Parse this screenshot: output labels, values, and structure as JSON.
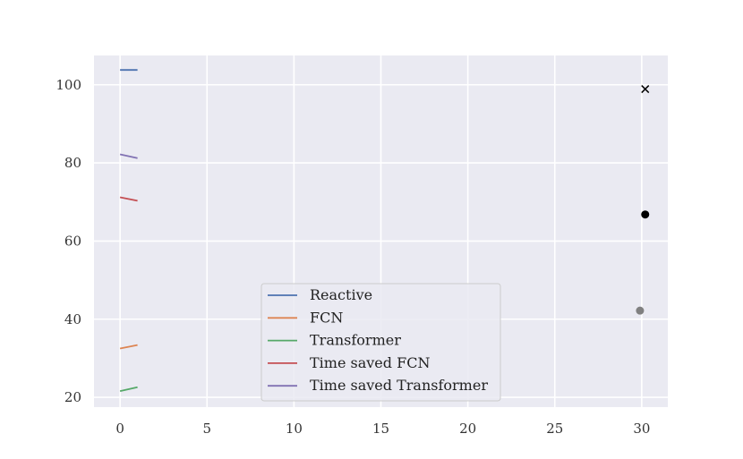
{
  "chart_data": {
    "type": "line",
    "title": "",
    "xlabel": "",
    "ylabel": "",
    "xlim": [
      -1.5,
      31.5
    ],
    "ylim": [
      17.5,
      107.5
    ],
    "xticks": [
      0,
      5,
      10,
      15,
      20,
      25,
      30
    ],
    "yticks": [
      20,
      40,
      60,
      80,
      100
    ],
    "grid": true,
    "legend_placement": "lower-center",
    "series": [
      {
        "name": "Reactive",
        "color": "#4c72b0",
        "x": [
          0,
          1
        ],
        "y": [
          103.8,
          103.8
        ]
      },
      {
        "name": "FCN",
        "color": "#dd8452",
        "x": [
          0,
          1
        ],
        "y": [
          32.5,
          33.4
        ]
      },
      {
        "name": "Transformer",
        "color": "#55a868",
        "x": [
          0,
          1
        ],
        "y": [
          21.6,
          22.6
        ]
      },
      {
        "name": "Time saved FCN",
        "color": "#c44e52",
        "x": [
          0,
          1
        ],
        "y": [
          71.2,
          70.3
        ]
      },
      {
        "name": "Time saved Transformer",
        "color": "#8172b3",
        "x": [
          0,
          1
        ],
        "y": [
          82.2,
          81.2
        ]
      }
    ],
    "markers": [
      {
        "marker": "x",
        "color": "#000000",
        "x": 30.2,
        "y": 98.9
      },
      {
        "marker": "circle",
        "color": "#000000",
        "x": 30.2,
        "y": 66.8
      },
      {
        "marker": "circle",
        "color": "#808080",
        "x": 29.9,
        "y": 42.2
      }
    ]
  }
}
